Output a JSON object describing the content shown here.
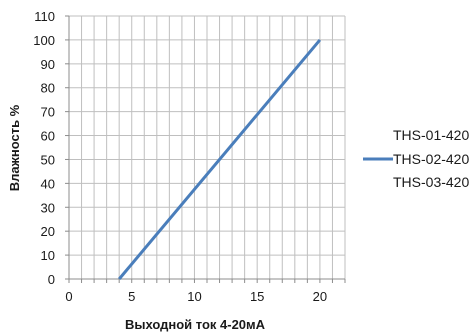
{
  "chart_data": {
    "type": "line",
    "xlabel": "Выходной ток 4-20мА",
    "ylabel": "Влажность %",
    "xlim": [
      0,
      22
    ],
    "ylim": [
      0,
      110
    ],
    "x_ticks": [
      0,
      5,
      10,
      15,
      20
    ],
    "y_ticks": [
      0,
      10,
      20,
      30,
      40,
      50,
      60,
      70,
      80,
      90,
      100,
      110
    ],
    "x_minor_grid_step": 1,
    "grid": true,
    "legend_position": "right",
    "legend_entries": [
      "THS-01-420",
      "THS-02-420",
      "THS-03-420"
    ],
    "series": [
      {
        "x": [
          4,
          20
        ],
        "y": [
          0,
          100
        ],
        "color": "#4a7ebb"
      }
    ]
  }
}
